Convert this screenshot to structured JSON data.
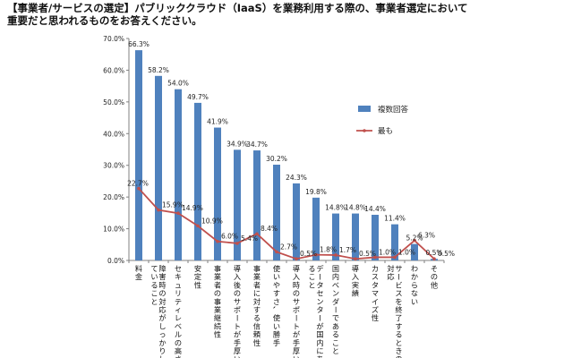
{
  "title_lines": [
    "【事業者/サービスの選定】パブリッククラウド（IaaS）を業務利用する際の、事業者選定において",
    "重要だと思われるものをお答えください。"
  ],
  "colors": {
    "bar": "#4f81bd",
    "line": "#c0504d",
    "axis": "#808080",
    "grid": "#d9d9d9"
  },
  "chart_data": {
    "type": "bar",
    "categories": [
      "料金",
      "障害時の対応がしっかりしていること",
      "セキュリティレベルの高さ",
      "安定性",
      "事業者の事業継続性",
      "導入後のサポートが手厚い",
      "事業者に対する信頼性",
      "使いやすさ、使い勝手",
      "導入時のサポートが手厚い",
      "データセンターが国内にあること",
      "国内ベンダーであること",
      "導入実績",
      "カスタマイズ性",
      "サービスを終了するときの対応",
      "わからない",
      "その他"
    ],
    "series": [
      {
        "name": "複数回答",
        "type": "bar",
        "values": [
          66.3,
          58.2,
          54.0,
          49.7,
          41.9,
          34.9,
          34.7,
          30.2,
          24.3,
          19.8,
          14.8,
          14.8,
          14.4,
          11.4,
          5.2,
          0.5
        ],
        "labels": [
          "66.3%",
          "58.2%",
          "54.0%",
          "49.7%",
          "41.9%",
          "34.9%",
          "34.7%",
          "30.2%",
          "24.3%",
          "19.8%",
          "14.8%",
          "14.8%",
          "14.4%",
          "11.4%",
          "5.2%",
          "0.5%"
        ]
      },
      {
        "name": "最も",
        "type": "line",
        "values": [
          22.7,
          15.9,
          14.9,
          10.9,
          6.0,
          5.4,
          8.4,
          2.7,
          0.5,
          1.8,
          1.7,
          0.5,
          1.0,
          1.0,
          6.3,
          0.5
        ],
        "labels": [
          "22.7%",
          "15.9%",
          "14.9%",
          "10.9%",
          "6.0%",
          "5.4%",
          "8.4%",
          "2.7%",
          "0.5%",
          "1.8%",
          "1.7%",
          "0.5%",
          "1.0%",
          "1.0%",
          "6.3%",
          "0.5%"
        ]
      }
    ],
    "ylim": [
      0,
      70
    ],
    "yticks": [
      "0.0%",
      "10.0%",
      "20.0%",
      "30.0%",
      "40.0%",
      "50.0%",
      "60.0%",
      "70.0%"
    ],
    "legend": "right",
    "grid": false
  }
}
